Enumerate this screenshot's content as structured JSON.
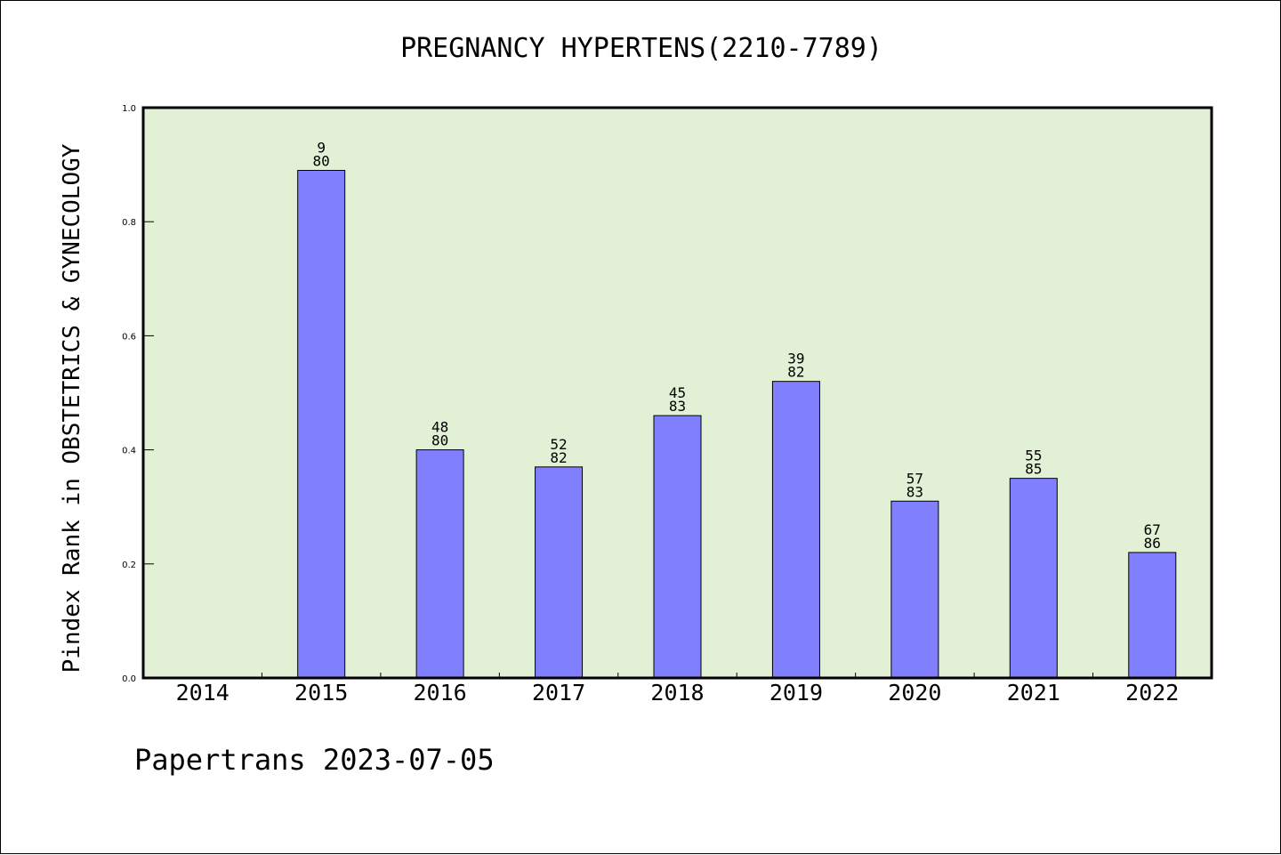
{
  "chart_data": {
    "type": "bar",
    "title": "PREGNANCY HYPERTENS(2210-7789)",
    "xlabel": "",
    "ylabel": "Pindex Rank in OBSTETRICS & GYNECOLOGY",
    "ylim": [
      0,
      1.0
    ],
    "yticks": [
      "0.0",
      "0.2",
      "0.4",
      "0.6",
      "0.8",
      "1.0"
    ],
    "categories": [
      "2014",
      "2015",
      "2016",
      "2017",
      "2018",
      "2019",
      "2020",
      "2021",
      "2022"
    ],
    "values": [
      null,
      0.89,
      0.4,
      0.37,
      0.46,
      0.52,
      0.31,
      0.35,
      0.22
    ],
    "labels": [
      null,
      {
        "rank": "9",
        "total": "80"
      },
      {
        "rank": "48",
        "total": "80"
      },
      {
        "rank": "52",
        "total": "82"
      },
      {
        "rank": "45",
        "total": "83"
      },
      {
        "rank": "39",
        "total": "82"
      },
      {
        "rank": "57",
        "total": "83"
      },
      {
        "rank": "55",
        "total": "85"
      },
      {
        "rank": "67",
        "total": "86"
      }
    ],
    "grid": false,
    "colors": {
      "plot_bg": "#e2f0d6",
      "bar": "#8080ff",
      "bar_edge": "#000000"
    }
  },
  "footer": "Papertrans 2023-07-05"
}
